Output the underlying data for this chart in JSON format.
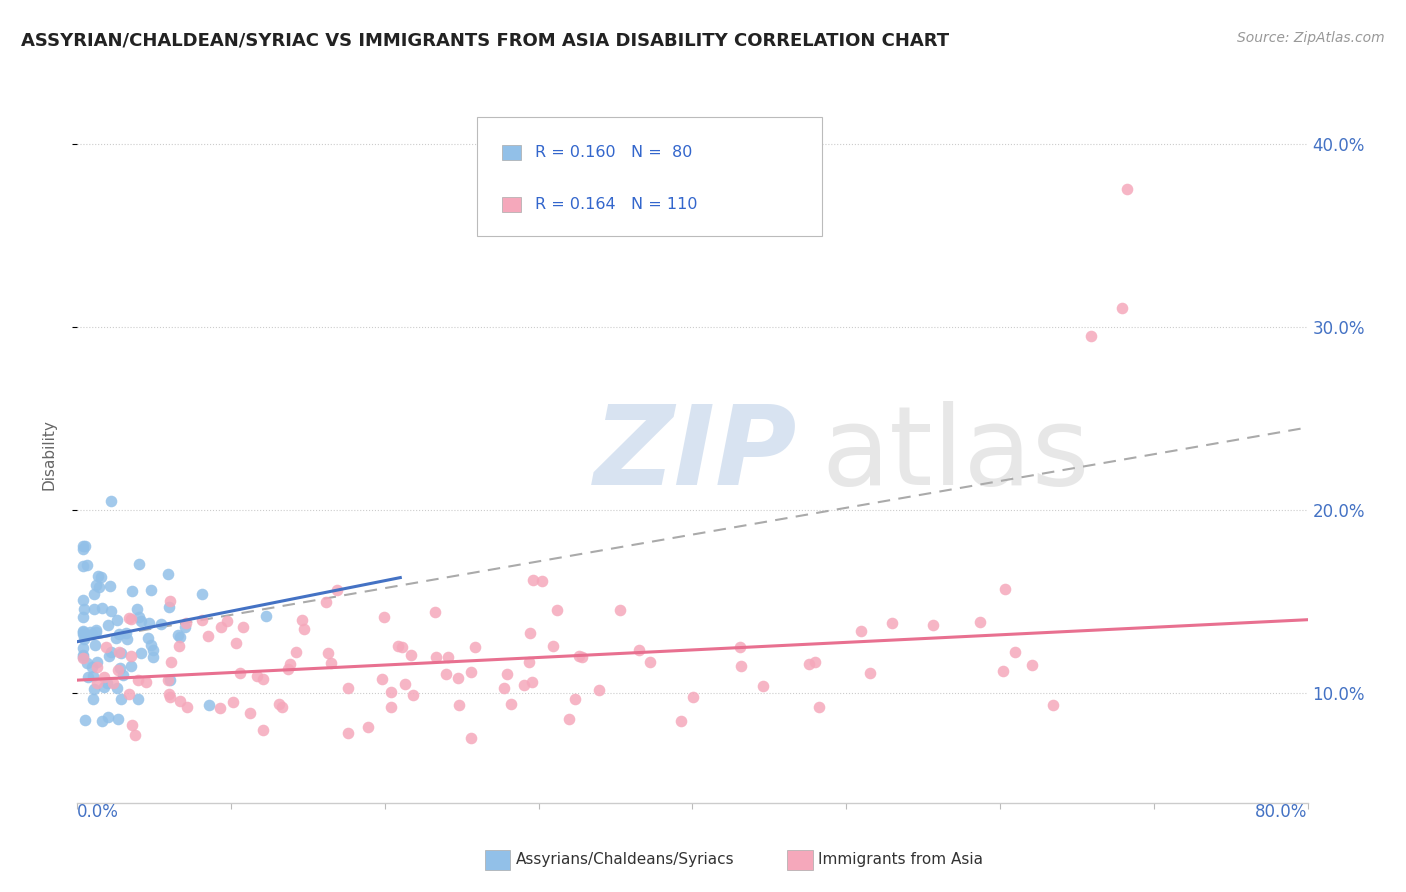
{
  "title": "ASSYRIAN/CHALDEAN/SYRIAC VS IMMIGRANTS FROM ASIA DISABILITY CORRELATION CHART",
  "source": "Source: ZipAtlas.com",
  "ylabel": "Disability",
  "xlim": [
    0.0,
    0.8
  ],
  "ylim": [
    0.04,
    0.42
  ],
  "ytick_vals": [
    0.1,
    0.2,
    0.3,
    0.4
  ],
  "ytick_labels": [
    "10.0%",
    "20.0%",
    "30.0%",
    "40.0%"
  ],
  "blue_color": "#92C0E8",
  "pink_color": "#F5A8BB",
  "blue_line_color": "#4472C4",
  "pink_line_color": "#E87090",
  "dash_color": "#AAAAAA",
  "background_color": "#FFFFFF",
  "blue_seed": 10,
  "pink_seed": 20,
  "n_blue": 80,
  "n_pink": 110
}
